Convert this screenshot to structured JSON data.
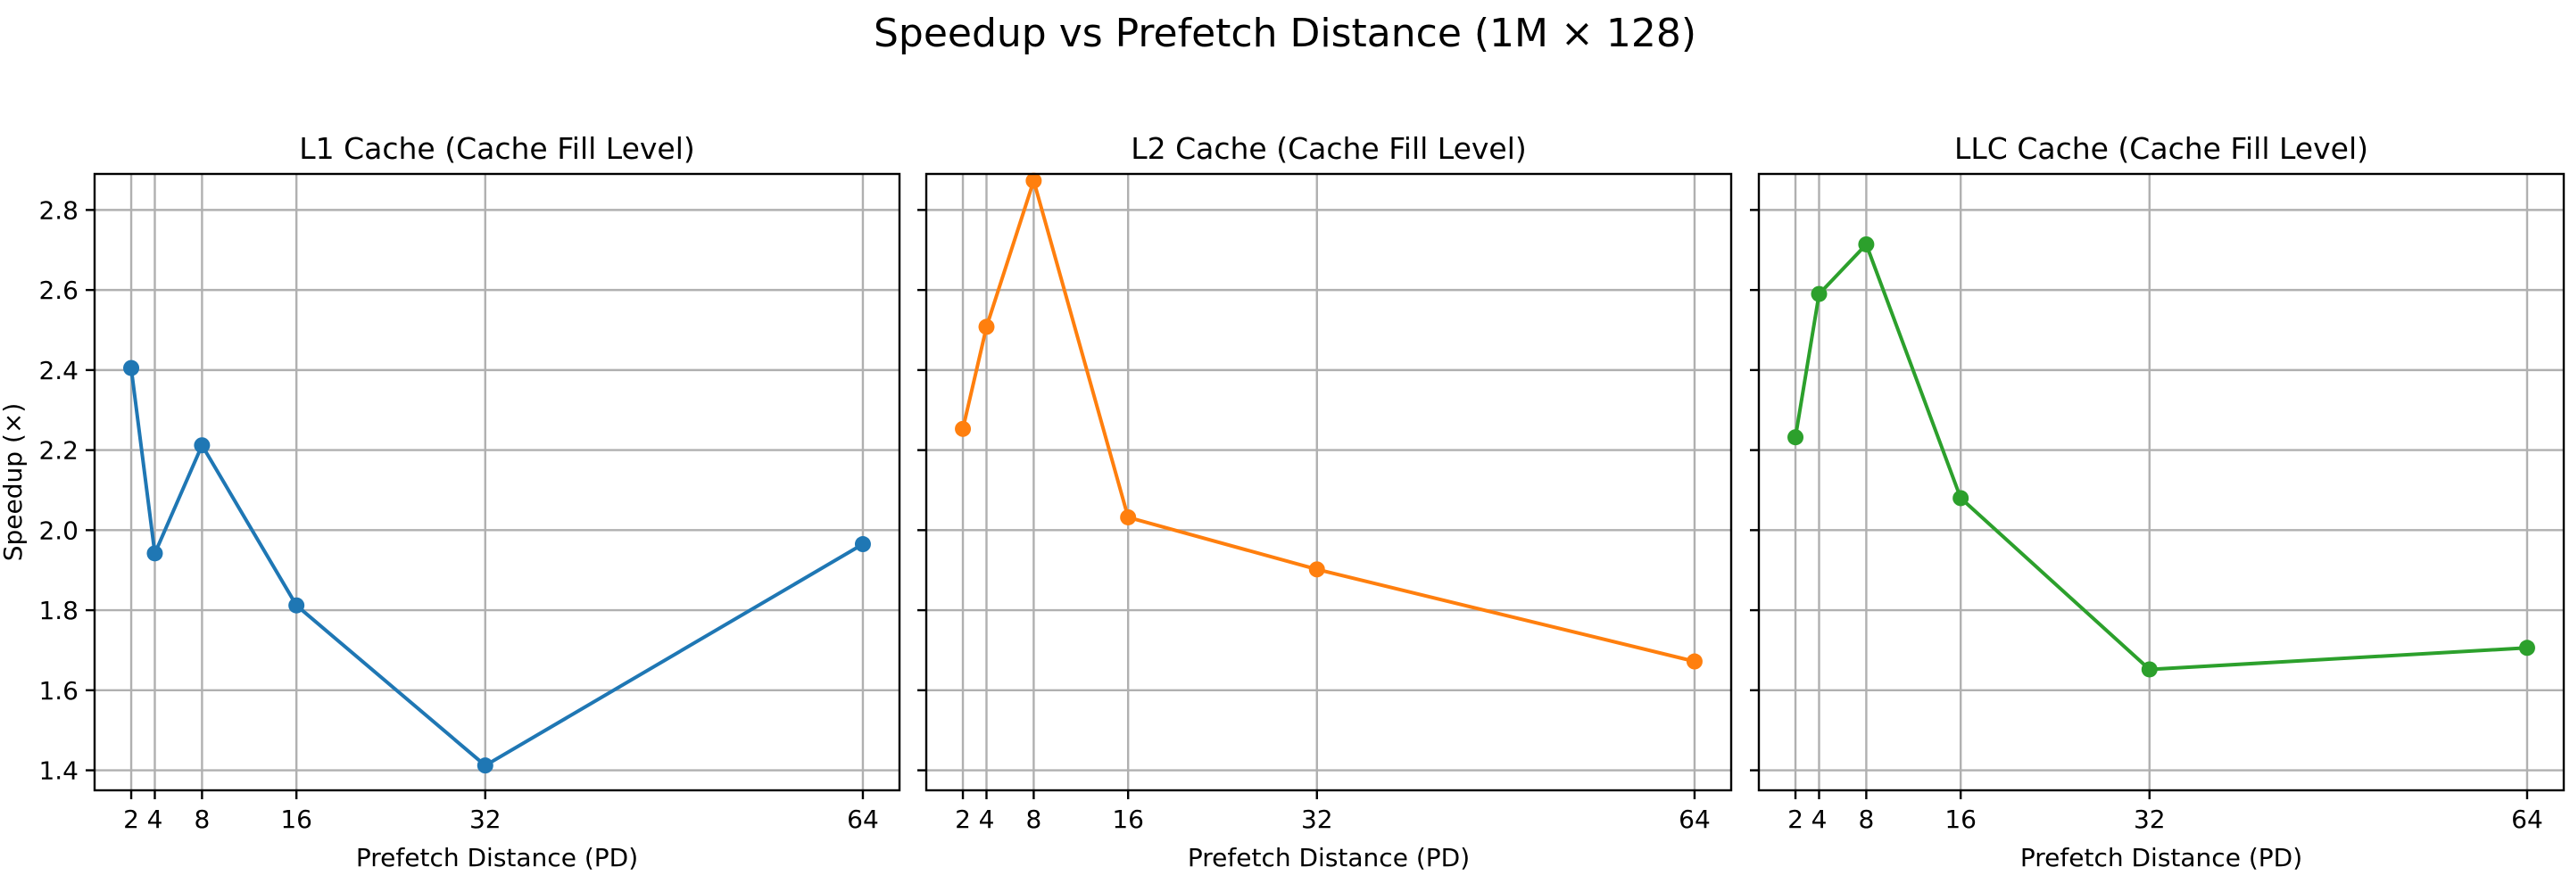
{
  "figure": {
    "title": "Speedup vs Prefetch Distance (1M × 128)"
  },
  "chart_data": [
    {
      "type": "line",
      "title": "L1 Cache (Cache Fill Level)",
      "xlabel": "Prefetch Distance (PD)",
      "ylabel": "Speedup (×)",
      "x": [
        2,
        4,
        8,
        16,
        32,
        64
      ],
      "xticks": [
        "2",
        "4",
        "8",
        "16",
        "32",
        "64"
      ],
      "yticks": [
        "1.4",
        "1.6",
        "1.8",
        "2.0",
        "2.2",
        "2.4",
        "2.6",
        "2.8"
      ],
      "ylim": [
        1.35,
        2.89
      ],
      "grid": true,
      "color": "#1f77b4",
      "series": [
        {
          "values": [
            2.405,
            1.942,
            2.212,
            1.812,
            1.412,
            1.965
          ]
        }
      ]
    },
    {
      "type": "line",
      "title": "L2 Cache (Cache Fill Level)",
      "xlabel": "Prefetch Distance (PD)",
      "ylabel": "",
      "x": [
        2,
        4,
        8,
        16,
        32,
        64
      ],
      "xticks": [
        "2",
        "4",
        "8",
        "16",
        "32",
        "64"
      ],
      "yticks": [
        "1.4",
        "1.6",
        "1.8",
        "2.0",
        "2.2",
        "2.4",
        "2.6",
        "2.8"
      ],
      "ylim": [
        1.35,
        2.89
      ],
      "grid": true,
      "color": "#ff7f0e",
      "series": [
        {
          "values": [
            2.253,
            2.508,
            2.873,
            2.032,
            1.902,
            1.672
          ]
        }
      ]
    },
    {
      "type": "line",
      "title": "LLC Cache (Cache Fill Level)",
      "xlabel": "Prefetch Distance (PD)",
      "ylabel": "",
      "x": [
        2,
        4,
        8,
        16,
        32,
        64
      ],
      "xticks": [
        "2",
        "4",
        "8",
        "16",
        "32",
        "64"
      ],
      "yticks": [
        "1.4",
        "1.6",
        "1.8",
        "2.0",
        "2.2",
        "2.4",
        "2.6",
        "2.8"
      ],
      "ylim": [
        1.35,
        2.89
      ],
      "grid": true,
      "color": "#2ca02c",
      "series": [
        {
          "values": [
            2.232,
            2.59,
            2.714,
            2.08,
            1.652,
            1.706
          ]
        }
      ]
    }
  ]
}
